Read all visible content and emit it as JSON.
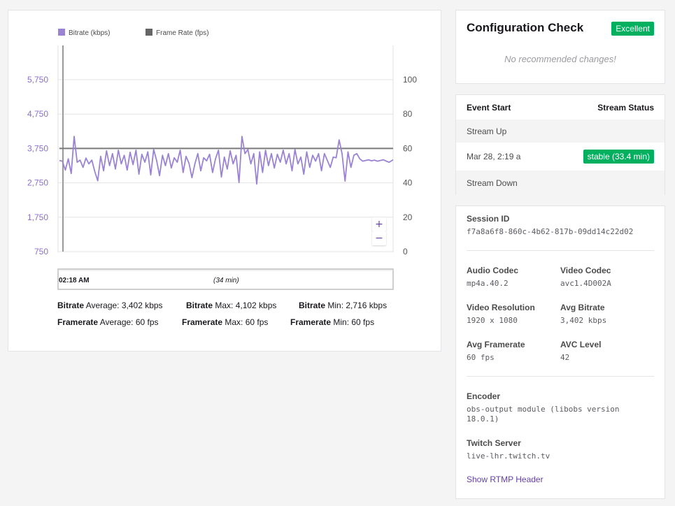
{
  "chart_data": {
    "type": "line",
    "legend": [
      {
        "name": "Bitrate (kbps)",
        "color": "#9b83d4"
      },
      {
        "name": "Frame Rate (fps)",
        "color": "#666666"
      }
    ],
    "left_axis": {
      "ticks": [
        "5,750",
        "4,750",
        "3,750",
        "2,750",
        "1,750",
        "750"
      ],
      "range": [
        750,
        5750
      ],
      "color": "#8b6fc9"
    },
    "right_axis": {
      "ticks": [
        "100",
        "80",
        "60",
        "40",
        "20",
        "0"
      ],
      "range": [
        0,
        100
      ]
    },
    "x_axis": {
      "unit": "minutes",
      "range": [
        0,
        34
      ]
    },
    "series": [
      {
        "name": "Bitrate (kbps)",
        "axis": "left",
        "color": "#9b83d4",
        "x": [
          0,
          0.3,
          0.6,
          0.9,
          1.2,
          1.5,
          1.8,
          2.1,
          2.4,
          2.7,
          3.0,
          3.3,
          3.6,
          3.9,
          4.2,
          4.5,
          4.8,
          5.1,
          5.4,
          5.7,
          6.0,
          6.3,
          6.6,
          6.9,
          7.2,
          7.5,
          7.8,
          8.1,
          8.4,
          8.7,
          9.0,
          9.3,
          9.6,
          9.9,
          10.2,
          10.5,
          10.8,
          11.1,
          11.4,
          11.7,
          12.0,
          12.3,
          12.6,
          12.9,
          13.2,
          13.5,
          13.8,
          14.1,
          14.4,
          14.7,
          15.0,
          15.3,
          15.6,
          15.9,
          16.2,
          16.5,
          16.8,
          17.1,
          17.4,
          17.7,
          18.0,
          18.3,
          18.6,
          18.9,
          19.2,
          19.5,
          19.8,
          20.1,
          20.4,
          20.7,
          21.0,
          21.3,
          21.6,
          21.9,
          22.2,
          22.5,
          22.8,
          23.1,
          23.4,
          23.7,
          24.0,
          24.3,
          24.6,
          24.9,
          25.2,
          25.5,
          25.8,
          26.1,
          26.4,
          26.7,
          27.0,
          27.3,
          27.6,
          27.9,
          28.2,
          28.5,
          28.8,
          29.1,
          29.4,
          29.7,
          30.0,
          30.3,
          30.6,
          30.9,
          31.2,
          31.5,
          31.8,
          32.1,
          32.4,
          32.7,
          33.0,
          33.3,
          33.6,
          34.0
        ],
        "values": [
          3400,
          3380,
          3120,
          3450,
          3020,
          4102,
          3350,
          3410,
          3200,
          3470,
          3300,
          3410,
          3080,
          2810,
          3520,
          3100,
          3680,
          3250,
          3600,
          3150,
          3700,
          3300,
          3550,
          3120,
          3640,
          3280,
          3700,
          3000,
          3580,
          3350,
          3650,
          2980,
          3720,
          3400,
          2960,
          3550,
          3250,
          3600,
          3180,
          3480,
          3350,
          3700,
          3050,
          3520,
          3320,
          2900,
          3300,
          3600,
          3100,
          3480,
          3390,
          3580,
          3050,
          3450,
          3700,
          2920,
          3500,
          3150,
          3680,
          3300,
          3550,
          2760,
          4102,
          3600,
          3720,
          3300,
          3600,
          2716,
          3650,
          3050,
          3700,
          3250,
          3600,
          3180,
          3580,
          3350,
          3700,
          3300,
          3600,
          3100,
          3720,
          3300,
          3500,
          3000,
          3650,
          3200,
          3550,
          3380,
          3600,
          3100,
          3600,
          3400,
          3200,
          3500,
          3480,
          4000,
          3600,
          2800,
          3650,
          3200,
          3550,
          3600,
          3450,
          3380,
          3400,
          3420,
          3390,
          3410,
          3380,
          3400,
          3420,
          3380,
          3350,
          3420
        ]
      },
      {
        "name": "Frame Rate (fps)",
        "axis": "right",
        "color": "#666666",
        "x": [
          0,
          34
        ],
        "values": [
          60,
          60
        ]
      }
    ]
  },
  "chart_nav": {
    "start_label": "02:18 AM",
    "duration_label": "(34 min)"
  },
  "zoom": {
    "in": "+",
    "out": "−"
  },
  "stats": {
    "bitrate_label": "Bitrate",
    "framerate_label": "Framerate",
    "bitrate_avg": "Average: 3,402 kbps",
    "bitrate_max": "Max: 4,102 kbps",
    "bitrate_min": "Min: 2,716 kbps",
    "framerate_avg": "Average: 60 fps",
    "framerate_max": "Max: 60 fps",
    "framerate_min": "Min: 60 fps"
  },
  "config": {
    "title": "Configuration Check",
    "badge": "Excellent",
    "message": "No recommended changes!"
  },
  "events": {
    "col1": "Event Start",
    "col2": "Stream Status",
    "stream_up": "Stream Up",
    "time": "Mar 28, 2:19 a",
    "status_badge": "stable (33.4 min)",
    "stream_down": "Stream Down"
  },
  "session": {
    "session_id_label": "Session ID",
    "session_id": "f7a8a6f8-860c-4b62-817b-09dd14c22d02",
    "audio_codec_label": "Audio Codec",
    "audio_codec": "mp4a.40.2",
    "video_codec_label": "Video Codec",
    "video_codec": "avc1.4D002A",
    "resolution_label": "Video Resolution",
    "resolution": "1920 x 1080",
    "avg_bitrate_label": "Avg Bitrate",
    "avg_bitrate": "3,402 kbps",
    "avg_framerate_label": "Avg Framerate",
    "avg_framerate": "60 fps",
    "avc_level_label": "AVC Level",
    "avc_level": "42",
    "encoder_label": "Encoder",
    "encoder_line1": "obs-output module (libobs version",
    "encoder_line2": "18.0.1)",
    "server_label": "Twitch Server",
    "server": "live-lhr.twitch.tv",
    "rtmp_link": "Show RTMP Header"
  },
  "colors": {
    "accent": "#6441a4",
    "success": "#00b05f",
    "bitrate": "#9b83d4",
    "framerate": "#666666"
  }
}
